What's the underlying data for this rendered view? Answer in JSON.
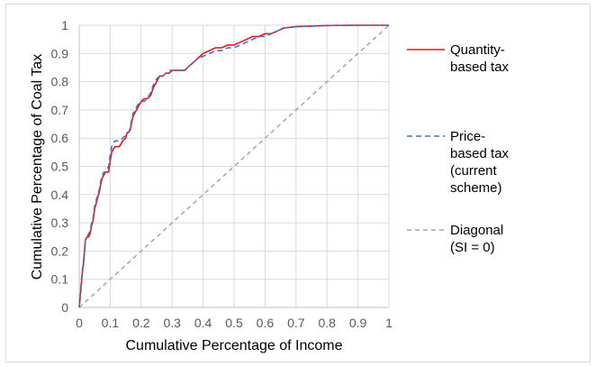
{
  "chart_data": {
    "type": "line",
    "title": "",
    "xlabel": "Cumulative Percentage of Income",
    "ylabel": "Cumulative Percentage of Coal Tax",
    "xlim": [
      0,
      1
    ],
    "ylim": [
      0,
      1
    ],
    "x_ticks": [
      "0",
      "0.1",
      "0.2",
      "0.3",
      "0.4",
      "0.5",
      "0.6",
      "0.7",
      "0.8",
      "0.9",
      "1"
    ],
    "y_ticks": [
      "0",
      "0.1",
      "0.2",
      "0.3",
      "0.4",
      "0.5",
      "0.6",
      "0.7",
      "0.8",
      "0.9",
      "1"
    ],
    "grid": true,
    "legend_position": "right",
    "series": [
      {
        "name": "Quantity-based tax",
        "name_lines": [
          "Quantity-",
          "based tax"
        ],
        "color": "#e8141c",
        "dash": "solid",
        "x": [
          0,
          0.005,
          0.01,
          0.015,
          0.02,
          0.025,
          0.03,
          0.035,
          0.04,
          0.045,
          0.05,
          0.055,
          0.06,
          0.065,
          0.07,
          0.075,
          0.08,
          0.085,
          0.09,
          0.095,
          0.1,
          0.105,
          0.11,
          0.115,
          0.12,
          0.13,
          0.14,
          0.15,
          0.155,
          0.16,
          0.165,
          0.17,
          0.175,
          0.18,
          0.19,
          0.2,
          0.21,
          0.22,
          0.23,
          0.24,
          0.25,
          0.26,
          0.27,
          0.28,
          0.29,
          0.3,
          0.32,
          0.34,
          0.35,
          0.36,
          0.37,
          0.38,
          0.4,
          0.42,
          0.44,
          0.46,
          0.48,
          0.5,
          0.52,
          0.54,
          0.56,
          0.58,
          0.6,
          0.62,
          0.64,
          0.66,
          0.7,
          0.75,
          0.8,
          0.9,
          1
        ],
        "y": [
          0,
          0.06,
          0.12,
          0.17,
          0.24,
          0.25,
          0.25,
          0.26,
          0.29,
          0.31,
          0.35,
          0.37,
          0.39,
          0.41,
          0.44,
          0.46,
          0.47,
          0.48,
          0.48,
          0.48,
          0.52,
          0.55,
          0.56,
          0.57,
          0.57,
          0.57,
          0.59,
          0.6,
          0.62,
          0.62,
          0.63,
          0.66,
          0.68,
          0.69,
          0.71,
          0.73,
          0.74,
          0.74,
          0.75,
          0.78,
          0.8,
          0.82,
          0.82,
          0.83,
          0.83,
          0.84,
          0.84,
          0.84,
          0.85,
          0.86,
          0.87,
          0.88,
          0.9,
          0.91,
          0.92,
          0.92,
          0.93,
          0.93,
          0.94,
          0.95,
          0.96,
          0.96,
          0.97,
          0.97,
          0.98,
          0.99,
          0.995,
          0.997,
          0.999,
          1,
          1
        ]
      },
      {
        "name": "Price-based tax (current scheme)",
        "name_lines": [
          "Price-",
          "based tax",
          "(current",
          "scheme)"
        ],
        "color": "#4472c4",
        "dash": "6,4",
        "x": [
          0,
          0.005,
          0.01,
          0.015,
          0.02,
          0.025,
          0.03,
          0.035,
          0.04,
          0.045,
          0.05,
          0.055,
          0.06,
          0.065,
          0.07,
          0.075,
          0.08,
          0.085,
          0.09,
          0.095,
          0.1,
          0.105,
          0.11,
          0.115,
          0.12,
          0.13,
          0.14,
          0.15,
          0.155,
          0.16,
          0.165,
          0.17,
          0.175,
          0.18,
          0.19,
          0.2,
          0.21,
          0.22,
          0.23,
          0.24,
          0.25,
          0.26,
          0.27,
          0.28,
          0.29,
          0.3,
          0.32,
          0.34,
          0.35,
          0.36,
          0.37,
          0.38,
          0.4,
          0.42,
          0.44,
          0.46,
          0.48,
          0.5,
          0.52,
          0.54,
          0.56,
          0.58,
          0.6,
          0.62,
          0.64,
          0.66,
          0.7,
          0.75,
          0.8,
          0.9,
          1
        ],
        "y": [
          0,
          0.07,
          0.13,
          0.18,
          0.24,
          0.25,
          0.26,
          0.27,
          0.3,
          0.32,
          0.36,
          0.38,
          0.4,
          0.42,
          0.45,
          0.47,
          0.48,
          0.48,
          0.49,
          0.5,
          0.54,
          0.57,
          0.58,
          0.59,
          0.59,
          0.59,
          0.6,
          0.61,
          0.62,
          0.62,
          0.64,
          0.67,
          0.69,
          0.7,
          0.72,
          0.73,
          0.73,
          0.74,
          0.76,
          0.79,
          0.81,
          0.82,
          0.82,
          0.83,
          0.84,
          0.84,
          0.84,
          0.84,
          0.85,
          0.86,
          0.87,
          0.88,
          0.89,
          0.9,
          0.91,
          0.91,
          0.92,
          0.92,
          0.93,
          0.94,
          0.95,
          0.96,
          0.96,
          0.97,
          0.98,
          0.99,
          0.995,
          0.997,
          0.999,
          1,
          1
        ]
      },
      {
        "name": "Diagonal (SI = 0)",
        "name_lines": [
          "Diagonal",
          "(SI = 0)"
        ],
        "color": "#a6a6a6",
        "dash": "5,4",
        "x": [
          0,
          1
        ],
        "y": [
          0,
          1
        ]
      }
    ]
  }
}
